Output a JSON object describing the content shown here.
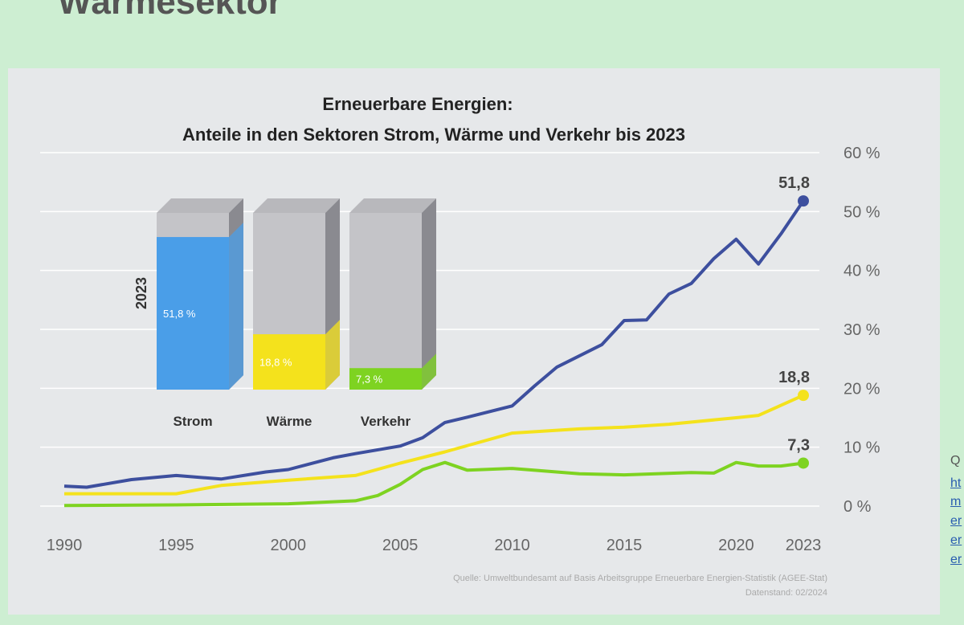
{
  "slide": {
    "title": "Wärmesektor"
  },
  "side_links": {
    "heading": "Q",
    "lines": [
      "ht",
      "m",
      "er",
      "er",
      "er"
    ]
  },
  "chart_data": {
    "type": "line",
    "title": "Erneuerbare Energien:",
    "subtitle": "Anteile in den Sektoren Strom, Wärme und Verkehr bis 2023",
    "xlabel": "",
    "ylabel": "",
    "x_ticks": [
      "1990",
      "1995",
      "2000",
      "2005",
      "2010",
      "2015",
      "2020",
      "2023"
    ],
    "y_ticks": [
      "0 %",
      "10 %",
      "20 %",
      "30 %",
      "40 %",
      "50 %",
      "60 %"
    ],
    "xlim": [
      1990,
      2023
    ],
    "ylim": [
      0,
      60
    ],
    "grid": true,
    "series": [
      {
        "name": "Strom",
        "color": "#3d4f9e",
        "end_label": "51,8",
        "x": [
          1990,
          1991,
          1993,
          1995,
          1997,
          1999,
          2000,
          2002,
          2003,
          2005,
          2006,
          2007,
          2008,
          2010,
          2011,
          2012,
          2014,
          2015,
          2016,
          2017,
          2018,
          2019,
          2020,
          2021,
          2022,
          2023
        ],
        "y": [
          3.4,
          3.2,
          4.5,
          5.2,
          4.6,
          5.8,
          6.2,
          8.2,
          8.9,
          10.2,
          11.6,
          14.2,
          15.1,
          17,
          20.4,
          23.6,
          27.4,
          31.5,
          31.6,
          36,
          37.8,
          42,
          45.3,
          41.1,
          46.2,
          51.8
        ]
      },
      {
        "name": "Wärme",
        "color": "#f4e21c",
        "end_label": "18,8",
        "x": [
          1990,
          1995,
          1997,
          2000,
          2003,
          2005,
          2007,
          2010,
          2013,
          2015,
          2017,
          2020,
          2021,
          2022,
          2023
        ],
        "y": [
          2.1,
          2.1,
          3.5,
          4.4,
          5.2,
          7.3,
          9.2,
          12.4,
          13.1,
          13.4,
          13.9,
          15,
          15.4,
          17.1,
          18.8
        ]
      },
      {
        "name": "Verkehr",
        "color": "#7ed321",
        "end_label": "7,3",
        "x": [
          1990,
          1995,
          2000,
          2003,
          2004,
          2005,
          2006,
          2007,
          2008,
          2010,
          2013,
          2015,
          2018,
          2019,
          2020,
          2021,
          2022,
          2023
        ],
        "y": [
          0.1,
          0.2,
          0.4,
          0.9,
          1.8,
          3.7,
          6.2,
          7.4,
          6.1,
          6.4,
          5.5,
          5.3,
          5.7,
          5.6,
          7.4,
          6.8,
          6.8,
          7.3
        ]
      }
    ],
    "inset_bars": {
      "year_label": "2023",
      "bars": [
        {
          "name": "Strom",
          "value": 51.8,
          "label": "51,8 %",
          "color": "#4a9ee8"
        },
        {
          "name": "Wärme",
          "value": 18.8,
          "label": "18,8 %",
          "color": "#f4e21c"
        },
        {
          "name": "Verkehr",
          "value": 7.3,
          "label": "7,3 %",
          "color": "#7ed321"
        }
      ]
    },
    "source": "Quelle: Umweltbundesamt auf Basis Arbeitsgruppe Erneuerbare Energien-Statistik (AGEE-Stat)",
    "data_date": "Datenstand: 02/2024"
  }
}
